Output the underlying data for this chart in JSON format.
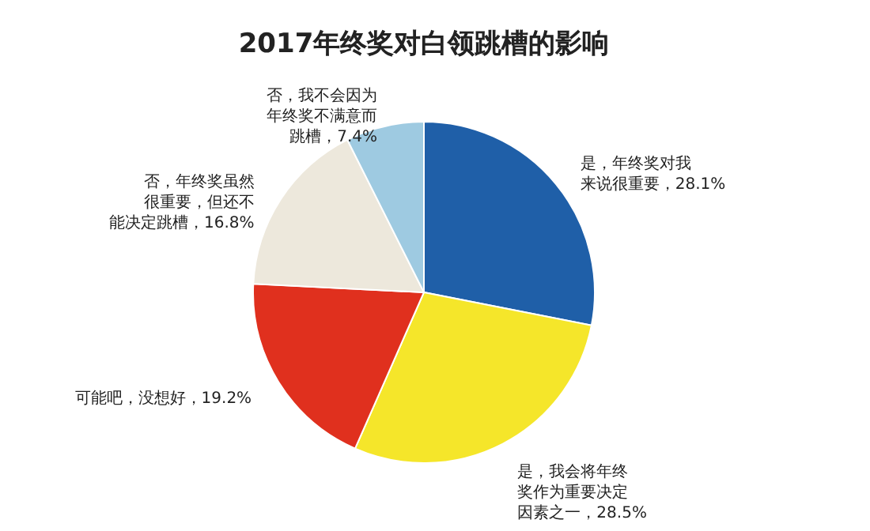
{
  "chart_data": {
    "type": "pie",
    "title": "2017年终奖对白领跳槽的影响",
    "categories": [
      "是，年终奖对我来说很重要",
      "是，我会将年终奖作为重要决定因素之一",
      "可能吧，没想好",
      "否，年终奖虽然很重要，但还不能决定跳槽",
      "否，我不会因为年终奖不满意而跳槽"
    ],
    "values": [
      28.1,
      28.5,
      19.2,
      16.8,
      7.4
    ],
    "value_labels": [
      "28.1%",
      "28.5%",
      "19.2%",
      "16.8%",
      "7.4%"
    ],
    "colors": [
      "#1f5fa8",
      "#f5e62a",
      "#e0301e",
      "#ede8dc",
      "#9ecae1"
    ]
  }
}
